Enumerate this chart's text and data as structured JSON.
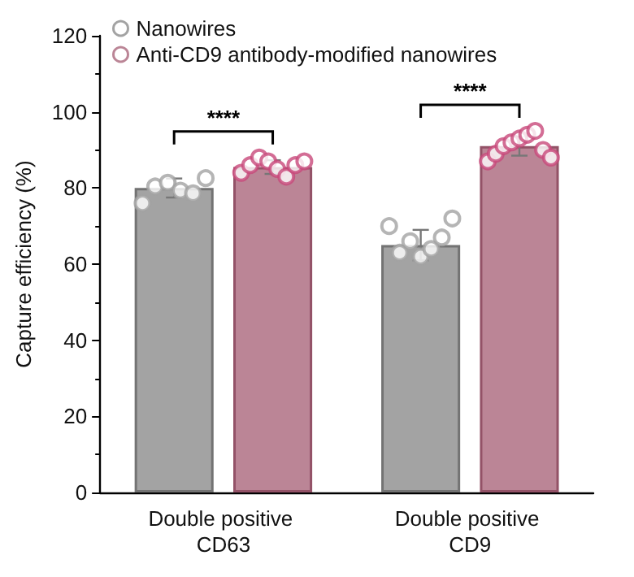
{
  "chart_data": {
    "type": "bar",
    "ylabel": "Capture efficiency (%)",
    "categories": [
      "Double positive CD63",
      "Double positive CD9"
    ],
    "series": [
      {
        "name": "Nanowires",
        "color": "#a3a3a3",
        "values": [
          80,
          65
        ],
        "errors": [
          2.5,
          4
        ]
      },
      {
        "name": "Anti-CD9 antibody-modified nanowires",
        "color": "#bb8596",
        "values": [
          85.5,
          91
        ],
        "errors": [
          1.8,
          2.5
        ]
      },
      {
        "type": "scatter",
        "color": "#a3a3a3",
        "x": [
          "Double positive CD63",
          "Double positive CD63",
          "Double positive CD63",
          "Double positive CD63",
          "Double positive CD63",
          "Double positive CD63",
          "Double positive CD9",
          "Double positive CD9",
          "Double positive CD9",
          "Double positive CD9",
          "Double positive CD9",
          "Double positive CD9",
          "Double positive CD9"
        ],
        "values": [
          76,
          80.4,
          81.4,
          79.3,
          78.6,
          82.6,
          70,
          63,
          66,
          62,
          64,
          67,
          72
        ]
      },
      {
        "type": "scatter",
        "color": "#c8487a",
        "x": [
          "Double positive CD63",
          "Double positive CD63",
          "Double positive CD63",
          "Double positive CD63",
          "Double positive CD63",
          "Double positive CD63",
          "Double positive CD63",
          "Double positive CD63",
          "Double positive CD9",
          "Double positive CD9",
          "Double positive CD9",
          "Double positive CD9",
          "Double positive CD9",
          "Double positive CD9",
          "Double positive CD9",
          "Double positive CD9",
          "Double positive CD9"
        ],
        "values": [
          84,
          86,
          88,
          87,
          85,
          83,
          86,
          87,
          87,
          89,
          91,
          92,
          93,
          94,
          95,
          90,
          88
        ]
      }
    ],
    "annotations": [
      "****",
      "****"
    ],
    "ylim": [
      0,
      120
    ],
    "yticks": [
      0,
      20,
      40,
      60,
      80,
      100,
      120
    ],
    "grid": false,
    "legend": "top left",
    "marker": "circle"
  }
}
